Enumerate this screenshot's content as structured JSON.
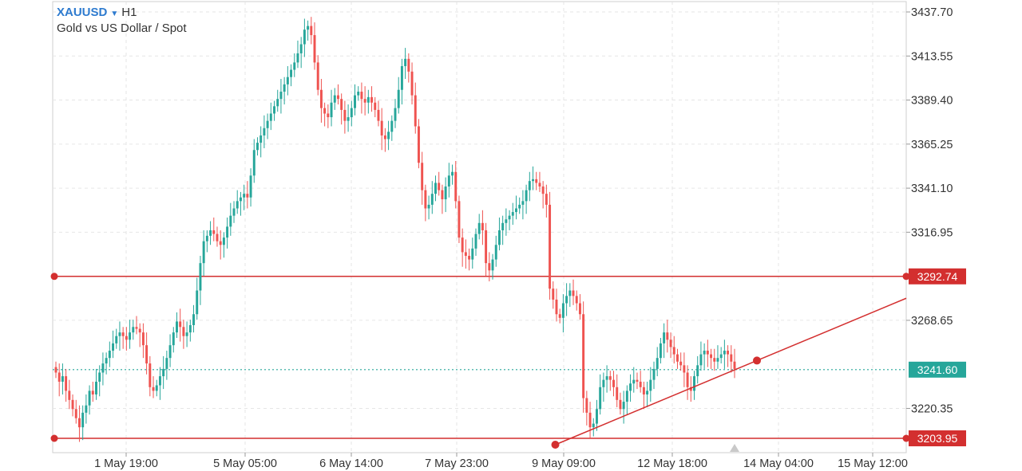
{
  "header": {
    "symbol": "XAUUSD",
    "timeframe": "H1",
    "instrument_name": "Gold vs US Dollar / Spot"
  },
  "colors": {
    "bull": "#26a69a",
    "bear": "#ef5350",
    "hline": "#d32f2f",
    "current_price": "#26a69a",
    "grid": "#e6e6e6"
  },
  "chart_data": {
    "type": "candlestick",
    "price_axis": {
      "min": 3203.95,
      "max": 3437.7,
      "ticks": [
        "3437.70",
        "3413.55",
        "3389.40",
        "3365.25",
        "3341.10",
        "3316.95",
        "3268.65",
        "3220.35"
      ]
    },
    "time_axis": {
      "ticks": [
        "1 May 19:00",
        "5 May 05:00",
        "6 May 14:00",
        "7 May 23:00",
        "9 May 09:00",
        "12 May 18:00",
        "14 May 04:00",
        "15 May 12:00"
      ],
      "grid": "dashed"
    },
    "horizontal_lines": [
      {
        "price": 3292.74,
        "label": "3292.74"
      },
      {
        "price": 3203.95,
        "label": "3203.95"
      }
    ],
    "current_price": {
      "price": 3241.6,
      "label": "3241.60",
      "style": "dotted"
    },
    "trendline": {
      "from": {
        "time_index": 0.5,
        "price": 3203.95
      },
      "to": {
        "time_index": 1.0,
        "price": 3272
      }
    },
    "candles_close": [
      3240,
      3235,
      3238,
      3230,
      3225,
      3220,
      3215,
      3210,
      3218,
      3222,
      3230,
      3228,
      3235,
      3240,
      3245,
      3248,
      3252,
      3256,
      3260,
      3262,
      3260,
      3258,
      3262,
      3265,
      3264,
      3262,
      3255,
      3245,
      3232,
      3230,
      3233,
      3238,
      3242,
      3248,
      3255,
      3262,
      3268,
      3265,
      3260,
      3262,
      3266,
      3272,
      3285,
      3300,
      3312,
      3315,
      3318,
      3316,
      3312,
      3310,
      3314,
      3320,
      3326,
      3330,
      3334,
      3336,
      3338,
      3336,
      3348,
      3362,
      3366,
      3370,
      3374,
      3378,
      3382,
      3386,
      3390,
      3394,
      3398,
      3402,
      3406,
      3410,
      3415,
      3420,
      3428,
      3430,
      3425,
      3410,
      3395,
      3385,
      3382,
      3380,
      3388,
      3392,
      3390,
      3384,
      3378,
      3380,
      3385,
      3392,
      3394,
      3390,
      3388,
      3391,
      3388,
      3384,
      3378,
      3370,
      3368,
      3372,
      3378,
      3385,
      3395,
      3408,
      3412,
      3405,
      3392,
      3375,
      3355,
      3340,
      3330,
      3332,
      3338,
      3344,
      3340,
      3335,
      3342,
      3348,
      3350,
      3334,
      3314,
      3306,
      3304,
      3302,
      3308,
      3316,
      3322,
      3318,
      3300,
      3296,
      3302,
      3310,
      3318,
      3322,
      3324,
      3326,
      3328,
      3330,
      3332,
      3334,
      3340,
      3345,
      3346,
      3344,
      3342,
      3338,
      3332,
      3286,
      3280,
      3272,
      3270,
      3278,
      3282,
      3285,
      3282,
      3278,
      3272,
      3226,
      3218,
      3210,
      3212,
      3220,
      3232,
      3236,
      3238,
      3236,
      3232,
      3225,
      3220,
      3224,
      3230,
      3234,
      3236,
      3235,
      3232,
      3228,
      3230,
      3236,
      3242,
      3248,
      3256,
      3262,
      3258,
      3254,
      3250,
      3246,
      3244,
      3240,
      3232,
      3230,
      3238,
      3244,
      3250,
      3252,
      3250,
      3248,
      3246,
      3248,
      3250,
      3252,
      3250,
      3246,
      3242
    ]
  }
}
